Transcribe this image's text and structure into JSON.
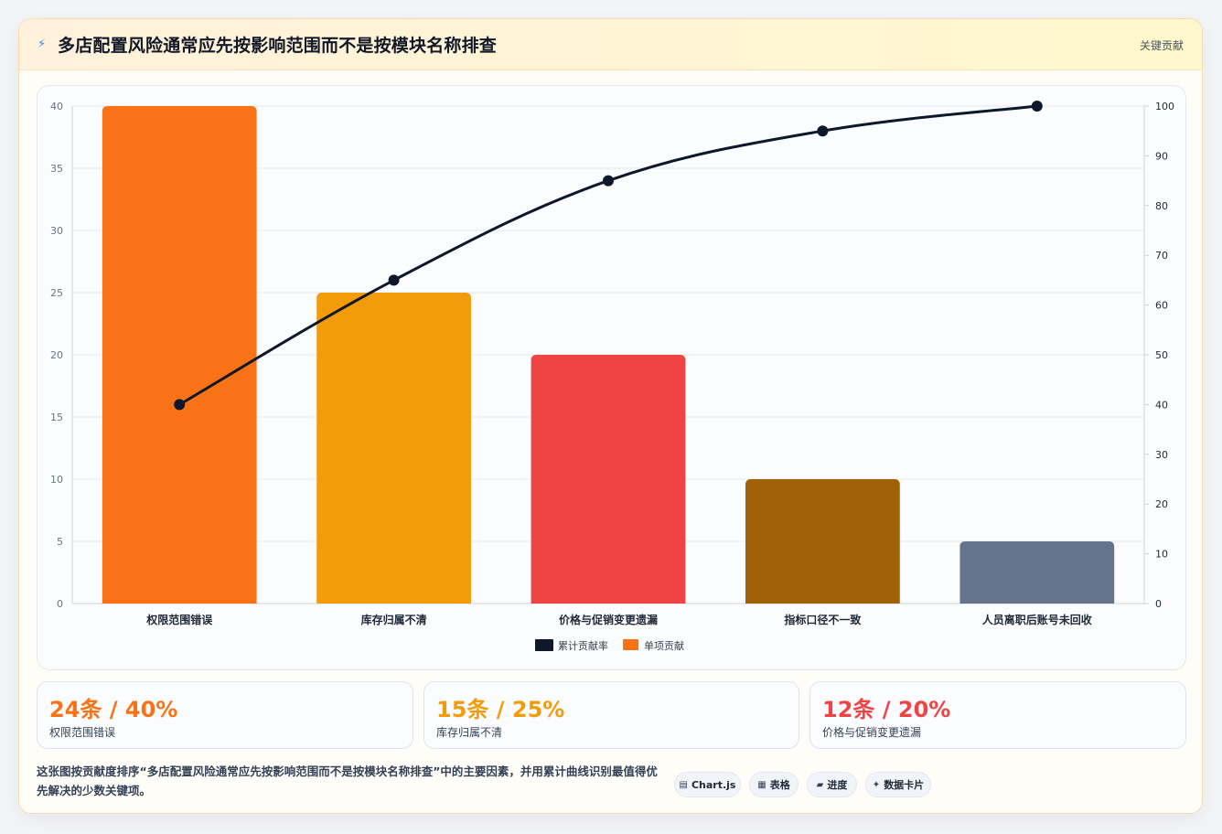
{
  "header": {
    "icon": "lightning-icon",
    "title": "多店配置风险通常应先按影响范围而不是按模块名称排查",
    "badge": "关键贡献"
  },
  "chart_data": {
    "type": "bar",
    "categories": [
      "权限范围错误",
      "库存归属不清",
      "价格与促销变更遗漏",
      "指标口径不一致",
      "人员离职后账号未回收"
    ],
    "series": [
      {
        "name": "单项贡献",
        "type": "bar",
        "values": [
          40,
          25,
          20,
          10,
          5
        ],
        "colors": [
          "#f97316",
          "#f39c0b",
          "#ef4444",
          "#a16207",
          "#64748b"
        ]
      },
      {
        "name": "累计贡献率",
        "type": "line",
        "values": [
          40,
          65,
          85,
          95,
          100
        ],
        "color": "#0f172a",
        "axis": "right"
      }
    ],
    "ylim": [
      0,
      40
    ],
    "y2lim": [
      0,
      100
    ],
    "yticks": [
      "0",
      "5",
      "10",
      "15",
      "20",
      "25",
      "30",
      "35",
      "40"
    ],
    "y2ticks": [
      "0",
      "10",
      "20",
      "30",
      "40",
      "50",
      "60",
      "70",
      "80",
      "90",
      "100"
    ],
    "legend": {
      "placement": "bottom",
      "entries": [
        "累计贡献率",
        "单项贡献"
      ]
    },
    "grid": true
  },
  "stats": [
    {
      "value": "24条 / 40%",
      "label": "权限范围错误",
      "color": "#f97316"
    },
    {
      "value": "15条 / 25%",
      "label": "库存归属不清",
      "color": "#f39c0b"
    },
    {
      "value": "12条 / 20%",
      "label": "价格与促销变更遗漏",
      "color": "#ef4444"
    }
  ],
  "footer": {
    "description": "这张图按贡献度排序“多店配置风险通常应先按影响范围而不是按模块名称排查”中的主要因素，并用累计曲线识别最值得优先解决的少数关键项。",
    "chips": [
      {
        "icon": "chart-icon",
        "glyph": "▤",
        "label": "Chart.js"
      },
      {
        "icon": "table-icon",
        "glyph": "▦",
        "label": "表格"
      },
      {
        "icon": "progress-icon",
        "glyph": "▰",
        "label": "进度"
      },
      {
        "icon": "card-icon",
        "glyph": "✦",
        "label": "数据卡片"
      }
    ]
  }
}
